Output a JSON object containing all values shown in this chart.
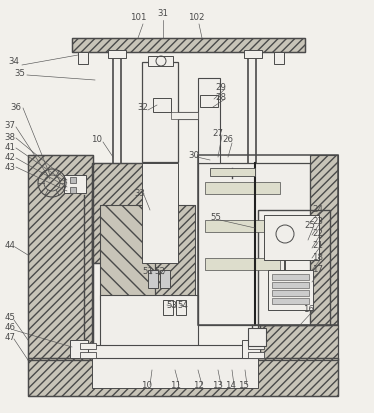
{
  "bg_color": "#f2f0eb",
  "line_color": "#4a4a4a",
  "figsize": [
    3.74,
    4.13
  ],
  "dpi": 100,
  "labels": [
    [
      "101",
      138,
      18
    ],
    [
      "31",
      163,
      14
    ],
    [
      "102",
      196,
      18
    ],
    [
      "34",
      14,
      62
    ],
    [
      "35",
      20,
      73
    ],
    [
      "36",
      16,
      107
    ],
    [
      "37",
      10,
      126
    ],
    [
      "38",
      10,
      138
    ],
    [
      "41",
      10,
      148
    ],
    [
      "42",
      10,
      158
    ],
    [
      "43",
      10,
      167
    ],
    [
      "10",
      97,
      140
    ],
    [
      "32",
      143,
      108
    ],
    [
      "29",
      221,
      87
    ],
    [
      "28",
      221,
      97
    ],
    [
      "30",
      194,
      155
    ],
    [
      "27",
      218,
      133
    ],
    [
      "26",
      228,
      140
    ],
    [
      "33",
      140,
      193
    ],
    [
      "25",
      310,
      226
    ],
    [
      "44",
      10,
      245
    ],
    [
      "55",
      216,
      218
    ],
    [
      "51",
      148,
      272
    ],
    [
      "52",
      160,
      272
    ],
    [
      "53",
      172,
      305
    ],
    [
      "54",
      183,
      305
    ],
    [
      "45",
      10,
      318
    ],
    [
      "46",
      10,
      328
    ],
    [
      "47",
      10,
      337
    ],
    [
      "10",
      147,
      385
    ],
    [
      "11",
      176,
      385
    ],
    [
      "12",
      199,
      385
    ],
    [
      "13",
      218,
      385
    ],
    [
      "14",
      231,
      385
    ],
    [
      "15",
      244,
      385
    ],
    [
      "16",
      309,
      310
    ],
    [
      "17",
      318,
      270
    ],
    [
      "18",
      318,
      258
    ],
    [
      "21",
      318,
      245
    ],
    [
      "22",
      318,
      233
    ],
    [
      "23",
      318,
      221
    ],
    [
      "24",
      318,
      210
    ]
  ]
}
